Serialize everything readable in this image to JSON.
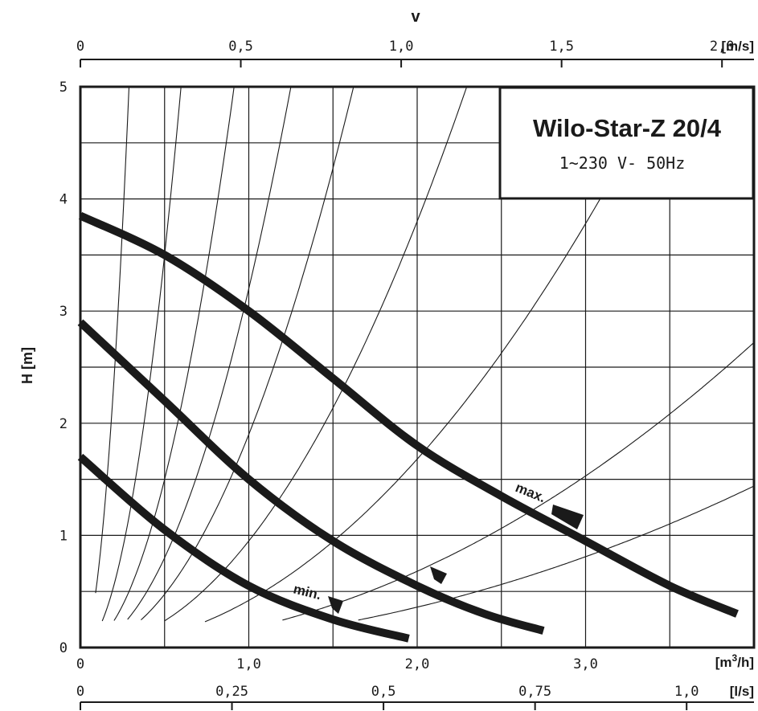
{
  "chart_data": {
    "type": "line",
    "title": "Wilo-Star-Z 20/4",
    "subtitle": "1~230 V- 50Hz",
    "ylabel": "H [m]",
    "x_axis_label": "[m3/h]",
    "x_axis_unit_base": "m",
    "x_axis_unit_sup": "3",
    "x_axis_unit_tail": "/h]",
    "top_axis_title": "v",
    "top_axis_unit": "[m/s]",
    "second_x_unit": "[l/s]",
    "xlim": [
      0,
      4.0
    ],
    "ylim": [
      0,
      5
    ],
    "x_ticks": [
      "0",
      "1,0",
      "2,0",
      "3,0"
    ],
    "y_ticks": [
      "0",
      "1",
      "2",
      "3",
      "4",
      "5"
    ],
    "top_ticks": [
      "0",
      "0,5",
      "1,0",
      "1,5",
      "2,0"
    ],
    "bottom2_ticks": [
      "0",
      "0,25",
      "0,5",
      "0,75",
      "1,0"
    ],
    "grid": true,
    "series": [
      {
        "name": "max.",
        "x": [
          0,
          0.5,
          1.0,
          1.5,
          2.0,
          2.5,
          3.0,
          3.5,
          3.9
        ],
        "y": [
          3.85,
          3.5,
          3.0,
          2.4,
          1.8,
          1.35,
          0.95,
          0.55,
          0.3
        ]
      },
      {
        "name": "",
        "x": [
          0,
          0.5,
          1.0,
          1.5,
          2.0,
          2.4,
          2.75
        ],
        "y": [
          2.9,
          2.2,
          1.5,
          0.95,
          0.55,
          0.3,
          0.15
        ]
      },
      {
        "name": "min.",
        "x": [
          0,
          0.5,
          1.0,
          1.5,
          1.95
        ],
        "y": [
          1.7,
          1.05,
          0.55,
          0.25,
          0.08
        ]
      }
    ],
    "labels": {
      "max": "max.",
      "min": "min."
    }
  }
}
